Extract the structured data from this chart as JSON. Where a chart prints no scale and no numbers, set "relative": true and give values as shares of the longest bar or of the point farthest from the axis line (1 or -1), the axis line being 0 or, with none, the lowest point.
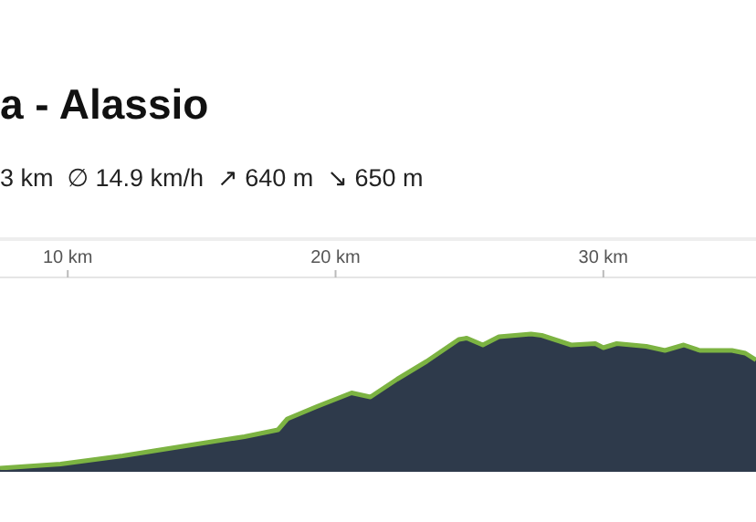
{
  "chart_data": {
    "type": "area",
    "title": "a - Alassio",
    "subtitle": "3 km  ∅ 14.9 km/h  ↗ 640 m  ↘ 650 m",
    "relative": true,
    "x": [
      7.47,
      9.73,
      12.05,
      14.3,
      16.6,
      17.85,
      18.2,
      19.3,
      20.6,
      21.3,
      22.3,
      23.4,
      24.6,
      24.9,
      25.5,
      26.1,
      27.3,
      27.7,
      28.8,
      29.7,
      30.0,
      30.5,
      31.6,
      32.3,
      33.0,
      33.6,
      34.8,
      35.3,
      35.7
    ],
    "series": [
      {
        "color": "#2e3a4b",
        "values": [
          0.02,
          0.05,
          0.11,
          0.18,
          0.25,
          0.3,
          0.38,
          0.47,
          0.57,
          0.54,
          0.67,
          0.8,
          0.96,
          0.97,
          0.92,
          0.98,
          1,
          0.99,
          0.92,
          0.93,
          0.9,
          0.93,
          0.91,
          0.88,
          0.92,
          0.88,
          0.88,
          0.86,
          0.81
        ]
      }
    ],
    "xlim": [
      7.47,
      35.7
    ],
    "xticks": [
      {
        "value": 10,
        "label": "10 km"
      },
      {
        "value": 20,
        "label": "20 km"
      },
      {
        "value": 30,
        "label": "30 km"
      }
    ]
  }
}
